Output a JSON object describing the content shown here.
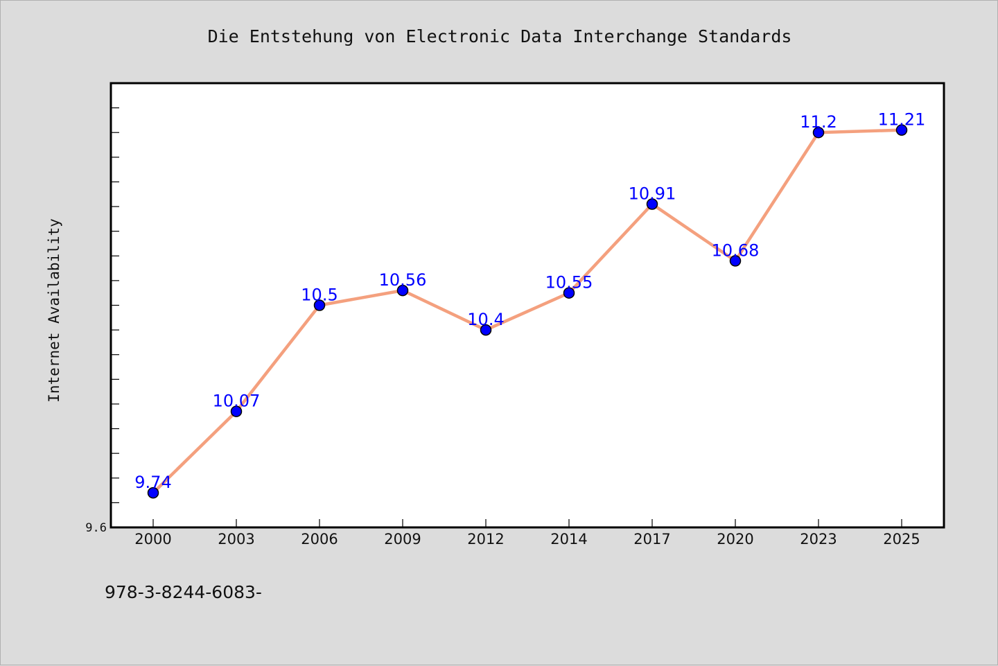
{
  "chart_data": {
    "type": "line",
    "title": "Die Entstehung von Electronic Data Interchange Standards",
    "xlabel": "",
    "ylabel": "Internet Availability",
    "categories": [
      "2000",
      "2003",
      "2006",
      "2009",
      "2012",
      "2014",
      "2017",
      "2020",
      "2023",
      "2025"
    ],
    "series": [
      {
        "values": [
          9.74,
          10.07,
          10.5,
          10.56,
          10.4,
          10.55,
          10.91,
          10.68,
          11.2,
          11.21
        ],
        "data_labels": [
          "9.74",
          "10.07",
          "10.5",
          "10.56",
          "10.4",
          "10.55",
          "10.91",
          "10.68",
          "11.2",
          "11.21"
        ],
        "line_color": "#f4a07e",
        "marker_color": "#0000ff"
      }
    ],
    "ylim": [
      9.6,
      11.4
    ],
    "ytick_labels": [
      "9.6"
    ],
    "grid": false,
    "legend": "none",
    "footer_text": "978-3-8244-6083-"
  }
}
